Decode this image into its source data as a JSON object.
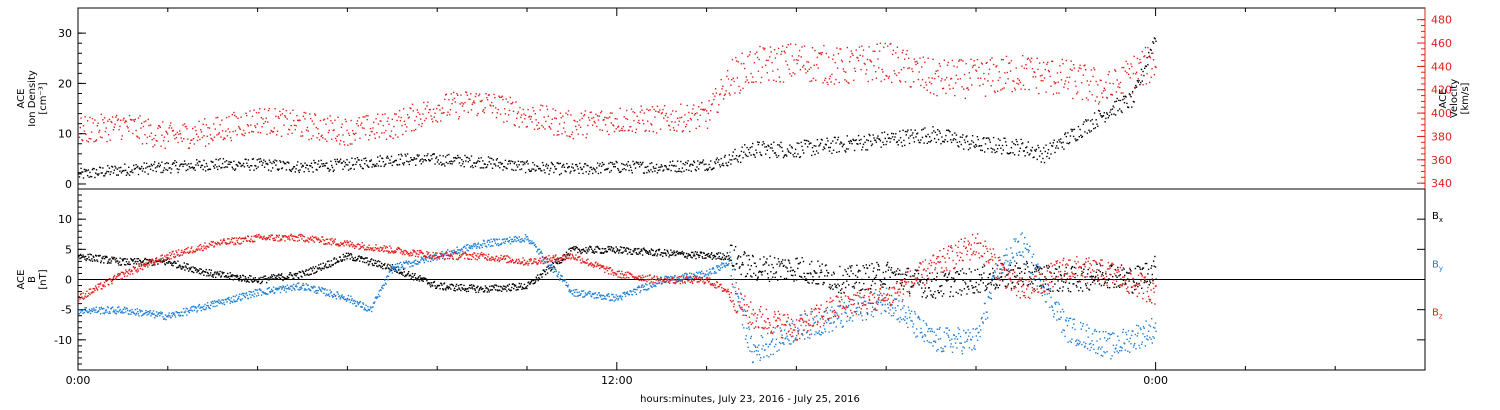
{
  "xlabel": "hours:minutes, July 23, 2016 - July 25, 2016",
  "x_ticks": [
    "0:00",
    "12:00",
    "0:00"
  ],
  "colors": {
    "black": "#000000",
    "red": "#e0201b",
    "blue": "#1f7fd6"
  },
  "chart_data": [
    {
      "type": "scatter",
      "panel": "top",
      "ylabel_left": [
        "ACE",
        "Ion Density",
        "[cm⁻³]"
      ],
      "ylabel_right": [
        "ACE",
        "Velocity",
        "[km/s]"
      ],
      "ylim_left": [
        -1,
        35
      ],
      "yticks_left": [
        "0",
        "10",
        "20",
        "30"
      ],
      "ylim_right": [
        335,
        490
      ],
      "yticks_right": [
        "340",
        "360",
        "380",
        "400",
        "420",
        "440",
        "460",
        "480"
      ],
      "x_range_hours": [
        0,
        30
      ],
      "series": [
        {
          "axis": "left",
          "color": "black",
          "x": [
            0,
            1,
            2,
            3,
            4,
            5,
            6,
            7,
            8,
            9,
            10,
            11,
            12,
            13,
            14,
            14.5,
            15,
            16,
            17,
            18,
            19,
            20,
            21,
            21.5,
            22,
            23,
            23.5,
            24
          ],
          "values": [
            2,
            3,
            3.5,
            4,
            4,
            3.5,
            4,
            5,
            5,
            4.5,
            3.5,
            3,
            3.5,
            3.5,
            4,
            5,
            7,
            7,
            8,
            9,
            10,
            8,
            7.5,
            6,
            9,
            15,
            17,
            30
          ]
        },
        {
          "axis": "right",
          "color": "red",
          "x": [
            0,
            1,
            2,
            3,
            4,
            5,
            6,
            7,
            8,
            9,
            10,
            11,
            12,
            13,
            14,
            14.5,
            15,
            16,
            17,
            18,
            19,
            20,
            21,
            22,
            23,
            23.5,
            24
          ],
          "values": [
            385,
            390,
            380,
            385,
            395,
            390,
            385,
            390,
            405,
            410,
            398,
            390,
            395,
            395,
            398,
            430,
            440,
            445,
            440,
            445,
            430,
            430,
            435,
            430,
            420,
            435,
            445
          ]
        }
      ]
    },
    {
      "type": "scatter",
      "panel": "bottom",
      "ylabel_left": [
        "ACE",
        "B",
        "[nT]"
      ],
      "ylim": [
        -15,
        15
      ],
      "yticks": [
        "-10",
        "-5",
        "0",
        "5",
        "10"
      ],
      "legend": [
        "Bx",
        "By",
        "Bz"
      ],
      "x_range_hours": [
        0,
        30
      ],
      "series": [
        {
          "name": "Bx",
          "color": "black",
          "x": [
            0,
            1,
            2,
            3,
            4,
            5,
            6,
            7,
            8,
            9,
            10,
            11,
            12,
            13,
            14,
            14.5,
            15,
            16,
            17,
            18,
            19,
            20,
            21,
            22,
            23,
            23.5,
            24
          ],
          "values": [
            4,
            3,
            3,
            1,
            0,
            1,
            4,
            2,
            -1,
            -1.5,
            -1,
            5,
            5,
            4.5,
            4,
            4,
            2,
            2,
            0,
            1,
            -1,
            0,
            1,
            0,
            1,
            0,
            2
          ]
        },
        {
          "name": "By",
          "color": "blue",
          "x": [
            0,
            1,
            2,
            3,
            4,
            5,
            6,
            6.5,
            7,
            8,
            9,
            10,
            11,
            12,
            13,
            14,
            14.5,
            15,
            16,
            17,
            18,
            19,
            20,
            20.5,
            21,
            22,
            23,
            24
          ],
          "values": [
            -5,
            -5,
            -6,
            -4,
            -2,
            -1,
            -3,
            -5,
            2,
            4,
            6,
            7,
            -2,
            -3,
            0,
            1,
            3,
            -12,
            -8,
            -6,
            -3,
            -10,
            -10,
            2,
            6,
            -8,
            -11,
            -8
          ]
        },
        {
          "name": "Bz",
          "color": "red",
          "x": [
            0,
            1,
            2,
            3,
            4,
            5,
            6,
            7,
            8,
            9,
            10,
            11,
            12,
            13,
            14,
            14.5,
            15,
            16,
            17,
            18,
            19,
            20,
            21,
            22,
            23,
            24
          ],
          "values": [
            -3,
            1,
            4,
            6,
            7,
            7,
            6,
            5,
            4,
            4,
            3,
            4,
            1,
            0,
            0,
            -2,
            -6,
            -8,
            -4,
            -3,
            2,
            6,
            -2,
            2,
            1,
            -2
          ]
        }
      ]
    }
  ]
}
